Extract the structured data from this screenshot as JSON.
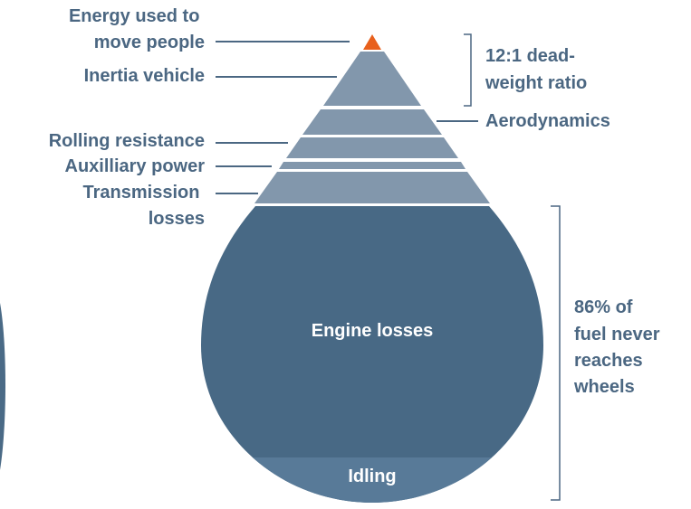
{
  "labels": {
    "energy_move_people": [
      "Energy used to",
      "move people"
    ],
    "inertia_vehicle": [
      "Inertia vehicle"
    ],
    "rolling_resistance": [
      "Rolling resistance"
    ],
    "auxiliary_power": [
      "Auxilliary power"
    ],
    "transmission_losses": [
      "Transmission",
      "losses"
    ],
    "aerodynamics": [
      "Aerodynamics"
    ],
    "dead_weight_ratio": [
      "12:1 dead-",
      "weight ratio"
    ],
    "engine_losses": [
      "Engine losses"
    ],
    "idling": [
      "Idling"
    ],
    "fuel_never_reaches": [
      "86% of",
      "fuel never",
      "reaches",
      "wheels"
    ]
  }
}
